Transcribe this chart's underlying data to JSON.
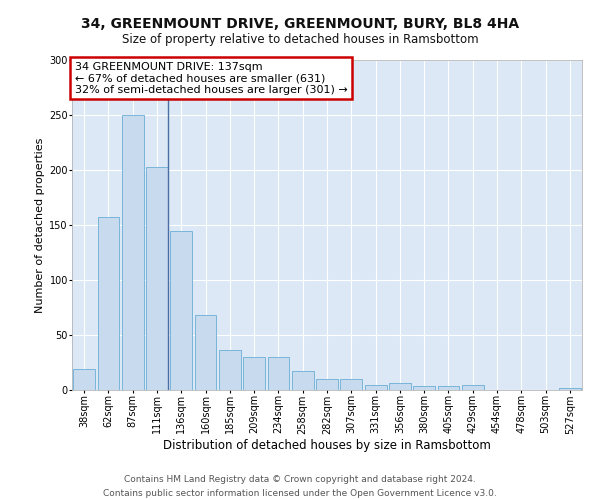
{
  "title1": "34, GREENMOUNT DRIVE, GREENMOUNT, BURY, BL8 4HA",
  "title2": "Size of property relative to detached houses in Ramsbottom",
  "xlabel": "Distribution of detached houses by size in Ramsbottom",
  "ylabel": "Number of detached properties",
  "categories": [
    "38sqm",
    "62sqm",
    "87sqm",
    "111sqm",
    "136sqm",
    "160sqm",
    "185sqm",
    "209sqm",
    "234sqm",
    "258sqm",
    "282sqm",
    "307sqm",
    "331sqm",
    "356sqm",
    "380sqm",
    "405sqm",
    "429sqm",
    "454sqm",
    "478sqm",
    "503sqm",
    "527sqm"
  ],
  "values": [
    19,
    157,
    250,
    203,
    145,
    68,
    36,
    30,
    30,
    17,
    10,
    10,
    5,
    6,
    4,
    4,
    5,
    0,
    0,
    0,
    2
  ],
  "bar_color": "#c8daee",
  "bar_edge_color": "#6aaed6",
  "vline_color": "#4a6fa5",
  "vline_x": 3.45,
  "ylim": [
    0,
    300
  ],
  "yticks": [
    0,
    50,
    100,
    150,
    200,
    250,
    300
  ],
  "annotation_line1": "34 GREENMOUNT DRIVE: 137sqm",
  "annotation_line2": "← 67% of detached houses are smaller (631)",
  "annotation_line3": "32% of semi-detached houses are larger (301) →",
  "annotation_box_facecolor": "#ffffff",
  "annotation_box_edgecolor": "#cc0000",
  "footer_line1": "Contains HM Land Registry data © Crown copyright and database right 2024.",
  "footer_line2": "Contains public sector information licensed under the Open Government Licence v3.0.",
  "plot_bg_color": "#dce8f5",
  "title1_fontsize": 10,
  "title2_fontsize": 8.5,
  "xlabel_fontsize": 8.5,
  "ylabel_fontsize": 8,
  "footer_fontsize": 6.5,
  "annotation_fontsize": 8,
  "tick_fontsize": 7
}
